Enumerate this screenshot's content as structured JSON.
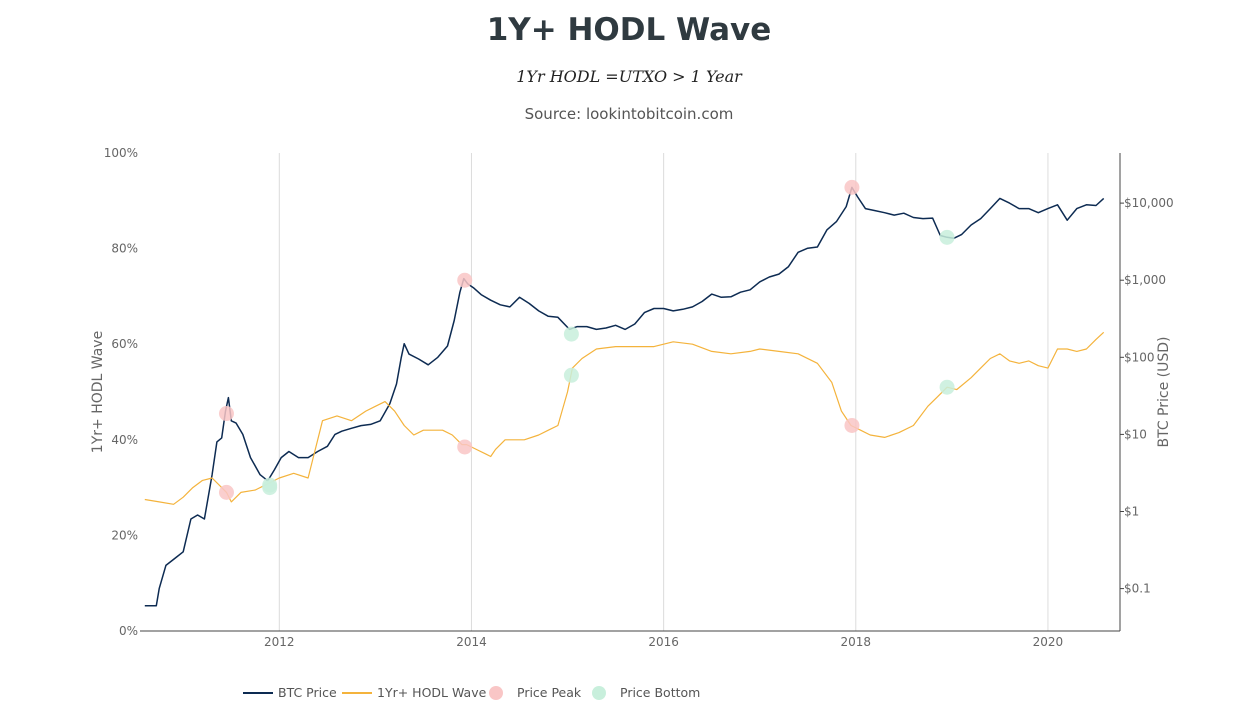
{
  "chart_data": {
    "type": "line",
    "title": "1Y+ HODL Wave",
    "subtitle": "1Yr HODL =UTXO > 1 Year",
    "source": "Source: lookintobitcoin.com",
    "xlabel": "",
    "x_ticks": [
      "2012",
      "2014",
      "2016",
      "2018",
      "2020"
    ],
    "x_range": [
      2010.55,
      2020.75
    ],
    "y_left": {
      "label": "1Yr+ HODL Wave",
      "ticks": [
        "0%",
        "20%",
        "40%",
        "60%",
        "80%",
        "100%"
      ],
      "range": [
        0,
        100
      ]
    },
    "y_right": {
      "label": "BTC Price (USD)",
      "scale": "log",
      "ticks": [
        "$0.1",
        "$1",
        "$10",
        "$100",
        "$1,000",
        "$10,000"
      ],
      "tick_values": [
        0.1,
        1,
        10,
        100,
        1000,
        10000
      ],
      "range_log10": [
        -1.55,
        4.65
      ]
    },
    "grid": {
      "vertical": true,
      "horizontal": false
    },
    "legend_position": "bottom",
    "colors": {
      "btc_price": "#0d2b52",
      "hodl_wave": "#f4b33c",
      "price_peak": "#f9c6c6",
      "price_bottom": "#c8efdc"
    },
    "series": [
      {
        "name": "BTC Price",
        "axis": "right",
        "x": [
          2010.6,
          2010.72,
          2010.75,
          2010.82,
          2010.92,
          2011.0,
          2011.08,
          2011.15,
          2011.22,
          2011.3,
          2011.35,
          2011.4,
          2011.44,
          2011.47,
          2011.5,
          2011.55,
          2011.62,
          2011.7,
          2011.8,
          2011.88,
          2011.95,
          2012.02,
          2012.1,
          2012.2,
          2012.3,
          2012.4,
          2012.5,
          2012.58,
          2012.65,
          2012.75,
          2012.85,
          2012.95,
          2013.05,
          2013.15,
          2013.22,
          2013.27,
          2013.3,
          2013.35,
          2013.45,
          2013.55,
          2013.65,
          2013.75,
          2013.82,
          2013.88,
          2013.92,
          2013.96,
          2014.02,
          2014.1,
          2014.2,
          2014.3,
          2014.4,
          2014.5,
          2014.6,
          2014.7,
          2014.8,
          2014.9,
          2015.02,
          2015.1,
          2015.2,
          2015.3,
          2015.4,
          2015.5,
          2015.6,
          2015.7,
          2015.8,
          2015.9,
          2016.0,
          2016.1,
          2016.2,
          2016.3,
          2016.4,
          2016.5,
          2016.6,
          2016.7,
          2016.8,
          2016.9,
          2017.0,
          2017.1,
          2017.2,
          2017.3,
          2017.4,
          2017.5,
          2017.6,
          2017.7,
          2017.8,
          2017.9,
          2017.96,
          2018.02,
          2018.1,
          2018.2,
          2018.3,
          2018.4,
          2018.5,
          2018.6,
          2018.7,
          2018.8,
          2018.88,
          2018.95,
          2019.02,
          2019.1,
          2019.2,
          2019.3,
          2019.4,
          2019.5,
          2019.6,
          2019.7,
          2019.8,
          2019.9,
          2020.0,
          2020.1,
          2020.2,
          2020.3,
          2020.4,
          2020.5,
          2020.58
        ],
        "values": [
          0.06,
          0.06,
          0.1,
          0.2,
          0.25,
          0.3,
          0.8,
          0.9,
          0.8,
          3,
          8,
          9,
          20,
          30,
          15,
          14,
          10,
          5,
          3,
          2.5,
          3.5,
          5,
          6,
          5,
          5,
          6,
          7,
          10,
          11,
          12,
          13,
          13.5,
          15,
          25,
          45,
          100,
          150,
          110,
          95,
          80,
          100,
          140,
          300,
          700,
          1050,
          900,
          800,
          650,
          550,
          480,
          450,
          600,
          500,
          400,
          340,
          330,
          230,
          250,
          250,
          230,
          240,
          260,
          230,
          270,
          380,
          430,
          430,
          400,
          420,
          450,
          530,
          660,
          600,
          610,
          700,
          750,
          950,
          1100,
          1200,
          1500,
          2300,
          2600,
          2700,
          4500,
          5800,
          9000,
          16000,
          12000,
          8500,
          8000,
          7500,
          7000,
          7400,
          6500,
          6300,
          6400,
          3800,
          3600,
          3500,
          3900,
          5200,
          6300,
          8500,
          11500,
          10000,
          8500,
          8500,
          7500,
          8500,
          9500,
          6000,
          8500,
          9500,
          9300,
          11500
        ],
        "color": "#0d2b52"
      },
      {
        "name": "1Yr+ HODL Wave",
        "axis": "left",
        "x": [
          2010.6,
          2010.75,
          2010.9,
          2011.0,
          2011.1,
          2011.2,
          2011.3,
          2011.4,
          2011.45,
          2011.5,
          2011.6,
          2011.75,
          2011.9,
          2012.0,
          2012.15,
          2012.3,
          2012.35,
          2012.45,
          2012.6,
          2012.75,
          2012.9,
          2013.0,
          2013.1,
          2013.2,
          2013.3,
          2013.4,
          2013.5,
          2013.6,
          2013.7,
          2013.8,
          2013.9,
          2013.95,
          2014.05,
          2014.15,
          2014.2,
          2014.25,
          2014.35,
          2014.45,
          2014.55,
          2014.7,
          2014.8,
          2014.9,
          2015.0,
          2015.05,
          2015.15,
          2015.3,
          2015.5,
          2015.7,
          2015.9,
          2016.0,
          2016.1,
          2016.3,
          2016.5,
          2016.7,
          2016.9,
          2017.0,
          2017.2,
          2017.4,
          2017.6,
          2017.75,
          2017.85,
          2017.95,
          2018.05,
          2018.15,
          2018.3,
          2018.45,
          2018.6,
          2018.75,
          2018.85,
          2018.95,
          2019.05,
          2019.2,
          2019.3,
          2019.4,
          2019.5,
          2019.6,
          2019.7,
          2019.8,
          2019.9,
          2020.0,
          2020.1,
          2020.2,
          2020.3,
          2020.4,
          2020.5,
          2020.58
        ],
        "values": [
          27.5,
          27,
          26.5,
          28,
          30,
          31.5,
          32,
          30,
          29,
          27,
          29,
          29.5,
          31,
          32,
          33,
          32,
          36,
          44,
          45,
          44,
          46,
          47,
          48,
          46,
          43,
          41,
          42,
          42,
          42,
          41,
          39,
          39,
          38,
          37,
          36.5,
          38,
          40,
          40,
          40,
          41,
          42,
          43,
          50,
          55,
          57,
          59,
          59.5,
          59.5,
          59.5,
          60,
          60.5,
          60,
          58.5,
          58,
          58.5,
          59,
          58.5,
          58,
          56,
          52,
          46,
          43,
          42,
          41,
          40.5,
          41.5,
          43,
          47,
          49,
          51,
          50.5,
          53,
          55,
          57,
          58,
          56.5,
          56,
          56.5,
          55.5,
          55,
          59,
          59,
          58.5,
          59,
          61,
          62.5
        ],
        "color": "#f4b33c"
      }
    ],
    "markers": [
      {
        "name": "Price Peak",
        "color": "#f9c6c6",
        "points": [
          {
            "x": 2011.45,
            "axis": "left",
            "y": 45.5
          },
          {
            "x": 2011.45,
            "axis": "left",
            "y": 29
          },
          {
            "x": 2013.93,
            "axis": "right",
            "y": 1000
          },
          {
            "x": 2013.93,
            "axis": "left",
            "y": 38.5
          },
          {
            "x": 2017.96,
            "axis": "right",
            "y": 16000
          },
          {
            "x": 2017.96,
            "axis": "left",
            "y": 43
          }
        ]
      },
      {
        "name": "Price Bottom",
        "color": "#c8efdc",
        "points": [
          {
            "x": 2011.9,
            "axis": "right",
            "y": 2.2
          },
          {
            "x": 2011.9,
            "axis": "left",
            "y": 30
          },
          {
            "x": 2015.04,
            "axis": "right",
            "y": 200
          },
          {
            "x": 2015.04,
            "axis": "left",
            "y": 53.5
          },
          {
            "x": 2018.95,
            "axis": "right",
            "y": 3600
          },
          {
            "x": 2018.95,
            "axis": "left",
            "y": 51
          }
        ]
      }
    ],
    "legend": [
      "BTC Price",
      "1Yr+ HODL Wave",
      "Price Peak",
      "Price Bottom"
    ]
  }
}
